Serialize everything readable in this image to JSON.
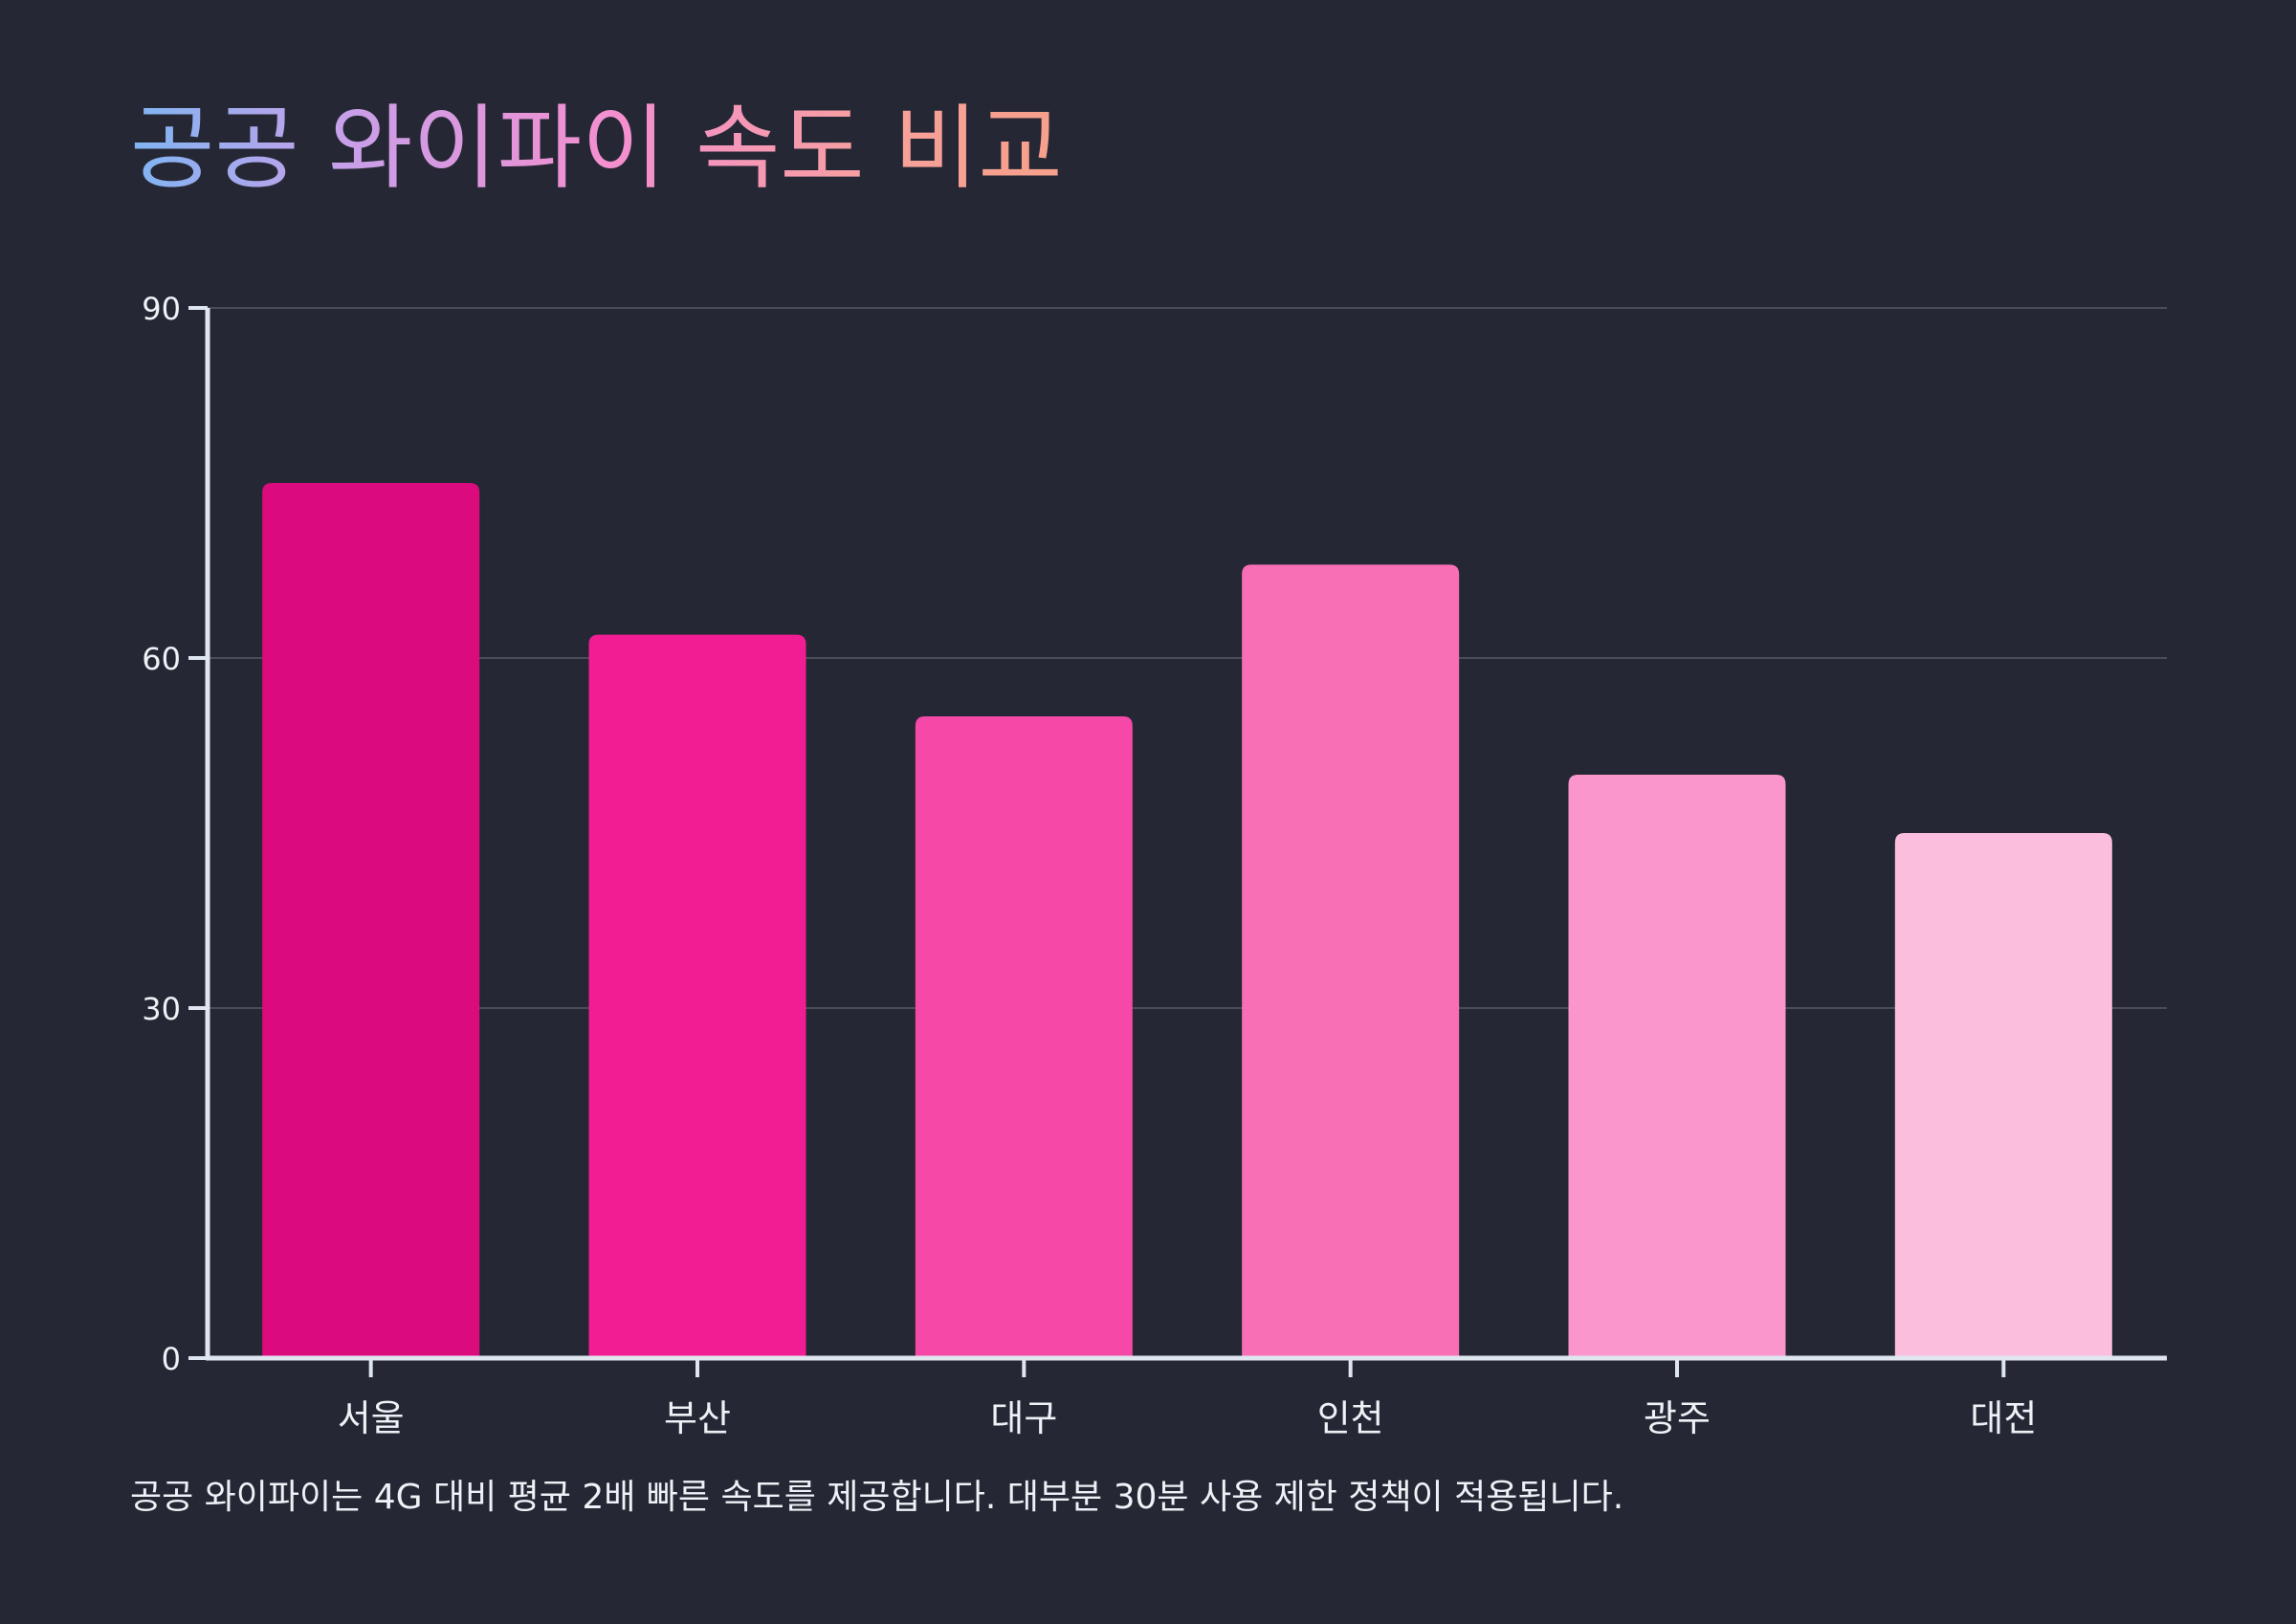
{
  "title": "공공 와이파이 속도 비교",
  "footnote": "공공 와이파이는 4G 대비 평균 2배 빠른 속도를 제공합니다. 대부분 30분 사용 제한 정책이 적용됩니다.",
  "colors": {
    "background": "#252834",
    "axis": "#dfe6f0",
    "grid": "#4a4d58",
    "text": "#eef1f6",
    "bars": [
      "#db0b7d",
      "#f21d92",
      "#f648a7",
      "#f86fb6",
      "#fa96cb",
      "#fbbedc"
    ]
  },
  "chart_data": {
    "type": "bar",
    "categories": [
      "서울",
      "부산",
      "대구",
      "인천",
      "광주",
      "대전"
    ],
    "values": [
      75,
      62,
      55,
      68,
      50,
      45
    ],
    "title": "공공 와이파이 속도 비교",
    "xlabel": "",
    "ylabel": "",
    "ylim": [
      0,
      90
    ],
    "yticks": [
      0,
      30,
      60,
      90
    ],
    "grid": true,
    "legend": "none"
  }
}
